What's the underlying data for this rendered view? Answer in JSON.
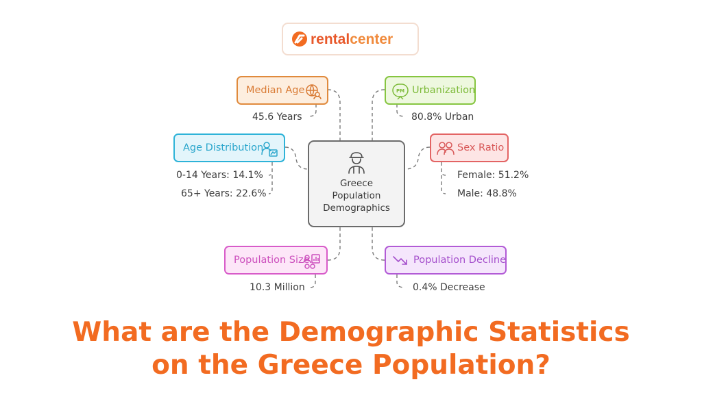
{
  "logo": {
    "text_rental": "rental",
    "text_center": "center"
  },
  "center": {
    "label": "Greece\nPopulation\nDemographics",
    "icon": "person-worker-icon"
  },
  "nodes": {
    "median_age": {
      "label": "Median Age",
      "stat": "45.6 Years",
      "icon": "globe-person-icon",
      "color": "#e08a3c",
      "fill": "#fdeedf"
    },
    "urbanization": {
      "label": "Urbanization",
      "stat": "80.8% Urban",
      "icon": "city-badge-icon",
      "color": "#86c540",
      "fill": "#eef8df"
    },
    "age_distribution": {
      "label": "Age Distribution",
      "stats": [
        "0-14 Years: 14.1%",
        "65+ Years: 22.6%"
      ],
      "icon": "age-chart-icon",
      "color": "#2eb3d8",
      "fill": "#e3f5fb"
    },
    "sex_ratio": {
      "label": "Sex Ratio",
      "stats": [
        "Female: 51.2%",
        "Male: 48.8%"
      ],
      "icon": "people-pair-icon",
      "color": "#e36464",
      "fill": "#fde5e5"
    },
    "population_size": {
      "label": "Population Size",
      "stat": "10.3 Million",
      "icon": "population-chart-icon",
      "color": "#d85bc9",
      "fill": "#fde6f8"
    },
    "population_decline": {
      "label": "Population Decline",
      "stat": "0.4% Decrease",
      "icon": "trend-down-icon",
      "color": "#b25bd6",
      "fill": "#f5e6fc"
    }
  },
  "headline": {
    "line1": "What are the Demographic Statistics",
    "line2": "on the Greece Population?"
  }
}
